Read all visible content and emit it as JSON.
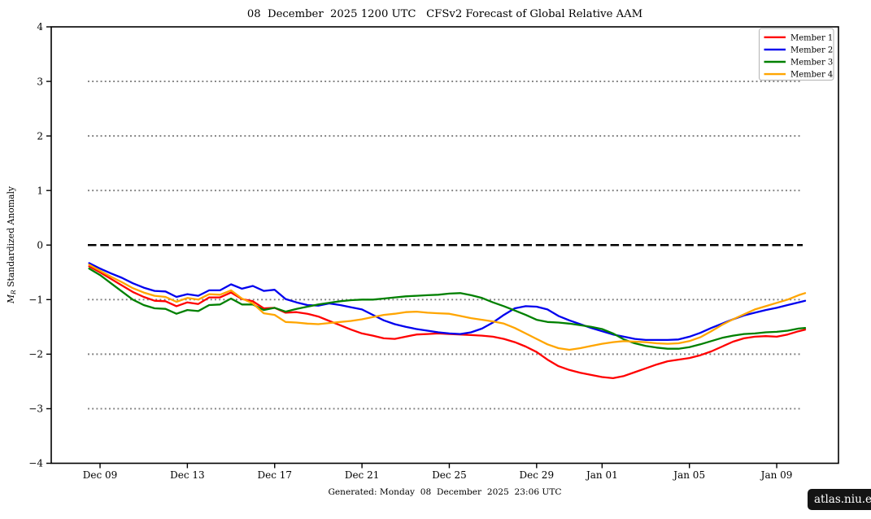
{
  "caption": "Generated: Monday  08  December  2025  23:06 UTC",
  "badge": "atlas.niu.edu",
  "chart_data": {
    "type": "line",
    "title": "08  December  2025 1200 UTC   CFSv2 Forecast of Global Relative AAM",
    "ylabel_parts": {
      "m": "M",
      "sub": "R",
      "rest": " Standardized Anomaly"
    },
    "ylim": [
      -4,
      4
    ],
    "grid": "dotted horizontal gridlines at integer values, heavy dashed line at zero",
    "legend_position": "upper right",
    "zero_line": 0,
    "grid_values": [
      3,
      2,
      1,
      -1,
      -2,
      -3
    ],
    "y_ticks": [
      {
        "value": 4,
        "label": "4"
      },
      {
        "value": 3,
        "label": "3"
      },
      {
        "value": 2,
        "label": "2"
      },
      {
        "value": 1,
        "label": "1"
      },
      {
        "value": 0,
        "label": "0"
      },
      {
        "value": -1,
        "label": "−1"
      },
      {
        "value": -2,
        "label": "−2"
      },
      {
        "value": -3,
        "label": "−3"
      },
      {
        "value": -4,
        "label": "−4"
      }
    ],
    "x_ticks": [
      {
        "day": 0.5,
        "label": "Dec 09"
      },
      {
        "day": 4.5,
        "label": "Dec 13"
      },
      {
        "day": 8.5,
        "label": "Dec 17"
      },
      {
        "day": 12.5,
        "label": "Dec 21"
      },
      {
        "day": 16.5,
        "label": "Dec 25"
      },
      {
        "day": 20.5,
        "label": "Dec 29"
      },
      {
        "day": 23.5,
        "label": "Jan 01"
      },
      {
        "day": 27.5,
        "label": "Jan 05"
      },
      {
        "day": 31.5,
        "label": "Jan 09"
      }
    ],
    "x_unit": "days since forecast start (08 December 2025 1200 UTC)",
    "x": [
      0,
      0.5,
      1,
      1.5,
      2,
      2.5,
      3,
      3.5,
      4,
      4.5,
      5,
      5.5,
      6,
      6.5,
      7,
      7.5,
      8,
      8.5,
      9,
      9.5,
      10,
      10.5,
      11,
      11.5,
      12,
      12.5,
      13,
      13.5,
      14,
      14.5,
      15,
      15.5,
      16,
      16.5,
      17,
      17.5,
      18,
      18.5,
      19,
      19.5,
      20,
      20.5,
      21,
      21.5,
      22,
      22.5,
      23,
      23.5,
      24,
      24.5,
      25,
      25.5,
      26,
      26.5,
      27,
      27.5,
      28,
      28.5,
      29,
      29.5,
      30,
      30.5,
      31,
      31.5,
      32,
      32.5,
      32.8
    ],
    "series": [
      {
        "name": "Member 1",
        "color": "#ff0000",
        "values": [
          -0.39,
          -0.5,
          -0.62,
          -0.74,
          -0.86,
          -0.95,
          -1.02,
          -1.03,
          -1.12,
          -1.05,
          -1.08,
          -0.96,
          -0.96,
          -0.87,
          -0.99,
          -1.03,
          -1.16,
          -1.15,
          -1.24,
          -1.23,
          -1.26,
          -1.31,
          -1.39,
          -1.47,
          -1.55,
          -1.62,
          -1.66,
          -1.71,
          -1.72,
          -1.68,
          -1.64,
          -1.63,
          -1.62,
          -1.63,
          -1.64,
          -1.65,
          -1.66,
          -1.68,
          -1.72,
          -1.78,
          -1.86,
          -1.96,
          -2.1,
          -2.22,
          -2.29,
          -2.34,
          -2.38,
          -2.42,
          -2.44,
          -2.4,
          -2.33,
          -2.26,
          -2.19,
          -2.13,
          -2.1,
          -2.07,
          -2.02,
          -1.95,
          -1.86,
          -1.77,
          -1.71,
          -1.68,
          -1.67,
          -1.68,
          -1.64,
          -1.58,
          -1.55
        ]
      },
      {
        "name": "Member 2",
        "color": "#0000ee",
        "values": [
          -0.33,
          -0.43,
          -0.52,
          -0.6,
          -0.7,
          -0.78,
          -0.84,
          -0.85,
          -0.95,
          -0.9,
          -0.93,
          -0.83,
          -0.83,
          -0.72,
          -0.8,
          -0.75,
          -0.84,
          -0.82,
          -0.99,
          -1.05,
          -1.1,
          -1.11,
          -1.07,
          -1.1,
          -1.14,
          -1.18,
          -1.28,
          -1.38,
          -1.45,
          -1.5,
          -1.54,
          -1.57,
          -1.6,
          -1.62,
          -1.63,
          -1.6,
          -1.53,
          -1.42,
          -1.28,
          -1.16,
          -1.12,
          -1.13,
          -1.18,
          -1.3,
          -1.38,
          -1.45,
          -1.52,
          -1.58,
          -1.64,
          -1.68,
          -1.72,
          -1.74,
          -1.74,
          -1.74,
          -1.73,
          -1.68,
          -1.61,
          -1.52,
          -1.44,
          -1.36,
          -1.29,
          -1.24,
          -1.19,
          -1.15,
          -1.1,
          -1.05,
          -1.02
        ]
      },
      {
        "name": "Member 3",
        "color": "#008000",
        "values": [
          -0.43,
          -0.55,
          -0.7,
          -0.85,
          -1.0,
          -1.1,
          -1.16,
          -1.17,
          -1.26,
          -1.19,
          -1.21,
          -1.1,
          -1.09,
          -0.98,
          -1.09,
          -1.09,
          -1.19,
          -1.15,
          -1.22,
          -1.17,
          -1.13,
          -1.09,
          -1.06,
          -1.03,
          -1.01,
          -1.0,
          -1.0,
          -0.98,
          -0.96,
          -0.94,
          -0.93,
          -0.92,
          -0.91,
          -0.89,
          -0.88,
          -0.92,
          -0.97,
          -1.05,
          -1.12,
          -1.2,
          -1.28,
          -1.37,
          -1.41,
          -1.42,
          -1.44,
          -1.47,
          -1.5,
          -1.54,
          -1.62,
          -1.73,
          -1.8,
          -1.85,
          -1.88,
          -1.9,
          -1.9,
          -1.87,
          -1.82,
          -1.76,
          -1.7,
          -1.66,
          -1.63,
          -1.62,
          -1.6,
          -1.59,
          -1.57,
          -1.53,
          -1.52
        ]
      },
      {
        "name": "Member 4",
        "color": "#ffa500",
        "values": [
          -0.36,
          -0.47,
          -0.58,
          -0.68,
          -0.79,
          -0.87,
          -0.93,
          -0.95,
          -1.04,
          -0.97,
          -1.0,
          -0.9,
          -0.91,
          -0.83,
          -0.98,
          -1.07,
          -1.25,
          -1.28,
          -1.41,
          -1.42,
          -1.44,
          -1.45,
          -1.43,
          -1.41,
          -1.39,
          -1.36,
          -1.32,
          -1.28,
          -1.26,
          -1.23,
          -1.22,
          -1.24,
          -1.25,
          -1.26,
          -1.3,
          -1.34,
          -1.37,
          -1.4,
          -1.44,
          -1.52,
          -1.62,
          -1.72,
          -1.82,
          -1.89,
          -1.92,
          -1.89,
          -1.85,
          -1.81,
          -1.78,
          -1.76,
          -1.77,
          -1.78,
          -1.8,
          -1.81,
          -1.8,
          -1.76,
          -1.69,
          -1.58,
          -1.46,
          -1.36,
          -1.27,
          -1.18,
          -1.12,
          -1.06,
          -1.0,
          -0.92,
          -0.88
        ]
      }
    ]
  }
}
